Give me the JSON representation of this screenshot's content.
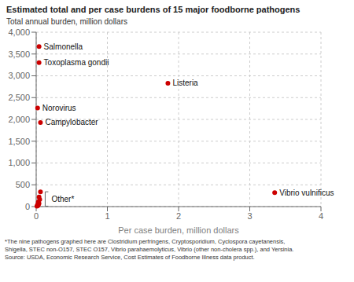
{
  "chart_data": {
    "type": "scatter",
    "title": "Estimated total and per case burdens of 15 major foodborne pathogens",
    "xlabel": "Per case burden, million dollars",
    "ylabel": "Total annual burden, million dollars",
    "x": [
      0.04,
      0.04,
      1.85,
      0.02,
      0.06,
      3.35,
      0.06,
      0.04,
      0.05,
      0.03,
      0.04,
      0.02,
      0.03,
      0.02,
      0.01
    ],
    "values": [
      3670,
      3300,
      2830,
      2260,
      1930,
      320,
      340,
      220,
      160,
      110,
      70,
      45,
      30,
      20,
      10
    ],
    "labels": [
      "Salmonella",
      "Toxoplasma gondii",
      "Listeria",
      "Norovirus",
      "Campylobacter",
      "Vibrio vulnificus",
      null,
      null,
      null,
      null,
      null,
      null,
      null,
      null,
      null
    ],
    "color": "#cc0000",
    "xlim": [
      0,
      4
    ],
    "ylim": [
      0,
      4000
    ],
    "xticks": [
      0,
      1,
      2,
      3,
      4
    ],
    "yticks": [
      0,
      500,
      {
        "value": 1000,
        "label": "1,000"
      },
      {
        "value": 1500,
        "label": "1,500"
      },
      {
        "value": 2000,
        "label": "2,000"
      },
      {
        "value": 2500,
        "label": "2,500"
      },
      {
        "value": 3000,
        "label": "3,000"
      },
      {
        "value": 3500,
        "label": "3,500"
      },
      {
        "value": 4000,
        "label": "4,000"
      }
    ],
    "grid": true,
    "annotation": "Other*",
    "footnote": [
      "*The nine pathogens graphed here are Clostridium perfringens, Cryptosporidium, Cyclospora cayetanensis,",
      "Shigella, STEC non-O157, STEC O157, Vibrio parahaemolyticus, Vibrio (other non-cholera spp.), and Yersinia.",
      "Source: USDA, Economic Research Service, Cost Estimates of Foodborne Illness data product."
    ]
  }
}
